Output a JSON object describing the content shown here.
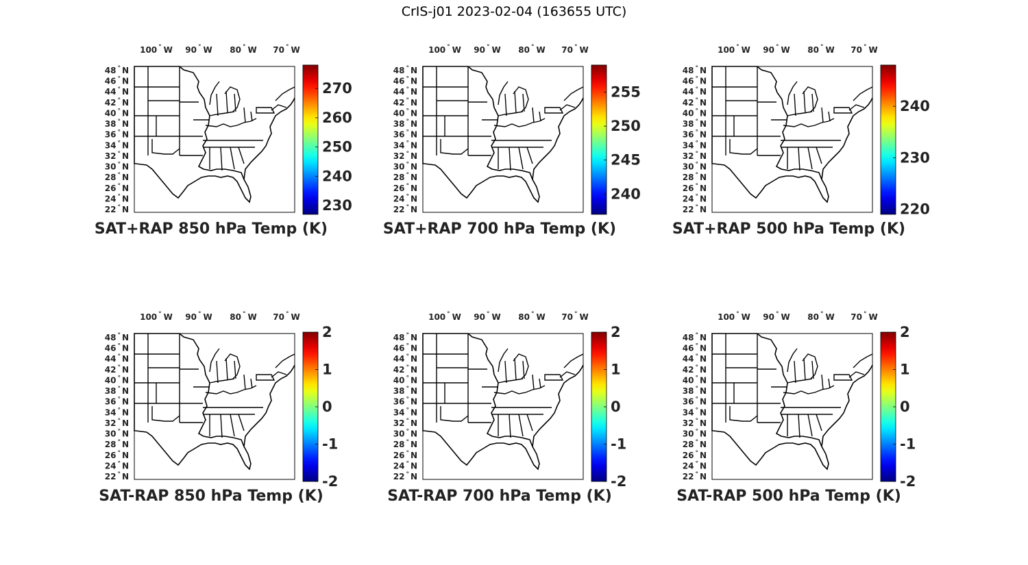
{
  "figure": {
    "title": "CrIS-j01 2023-02-04 (163655 UTC)"
  },
  "longitude_labels": [
    "100",
    "90",
    "80",
    "70"
  ],
  "longitude_suffix": "W",
  "latitude_labels": [
    "48",
    "46",
    "44",
    "42",
    "40",
    "38",
    "36",
    "34",
    "32",
    "30",
    "28",
    "26",
    "24",
    "22"
  ],
  "latitude_suffix": "N",
  "colors": {
    "colormap": "jet",
    "coastline": "#000000",
    "background": "#ffffff"
  },
  "panels": [
    {
      "title": "SAT+RAP 850 hPa Temp (K)",
      "colorbar": {
        "min": 227,
        "max": 278,
        "ticks": [
          "270",
          "260",
          "250",
          "240",
          "230"
        ],
        "tick_values": [
          270,
          260,
          250,
          240,
          230
        ]
      }
    },
    {
      "title": "SAT+RAP 700 hPa Temp (K)",
      "colorbar": {
        "min": 237,
        "max": 259,
        "ticks": [
          "255",
          "250",
          "245",
          "240"
        ],
        "tick_values": [
          255,
          250,
          245,
          240
        ]
      }
    },
    {
      "title": "SAT+RAP 500 hPa Temp (K)",
      "colorbar": {
        "min": 219,
        "max": 248,
        "ticks": [
          "240",
          "230",
          "220"
        ],
        "tick_values": [
          240,
          230,
          220
        ]
      }
    },
    {
      "title": "SAT-RAP 850 hPa Temp (K)",
      "colorbar": {
        "min": -2,
        "max": 2,
        "ticks": [
          "2",
          "1",
          "0",
          "-1",
          "-2"
        ],
        "tick_values": [
          2,
          1,
          0,
          -1,
          -2
        ]
      }
    },
    {
      "title": "SAT-RAP 700 hPa Temp (K)",
      "colorbar": {
        "min": -2,
        "max": 2,
        "ticks": [
          "2",
          "1",
          "0",
          "-1",
          "-2"
        ],
        "tick_values": [
          2,
          1,
          0,
          -1,
          -2
        ]
      }
    },
    {
      "title": "SAT-RAP 500 hPa Temp (K)",
      "colorbar": {
        "min": -2,
        "max": 2,
        "ticks": [
          "2",
          "1",
          "0",
          "-1",
          "-2"
        ],
        "tick_values": [
          2,
          1,
          0,
          -1,
          -2
        ]
      }
    }
  ]
}
